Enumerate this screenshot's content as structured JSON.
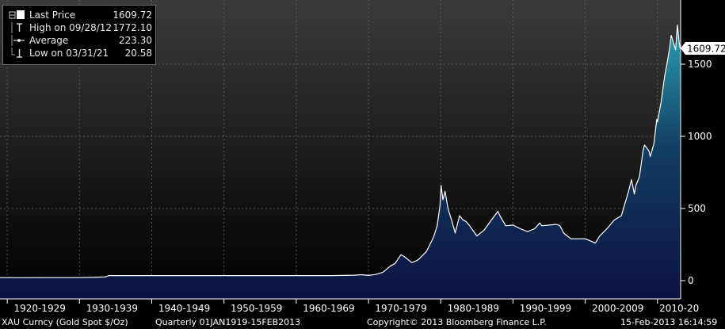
{
  "chart_data": {
    "type": "area",
    "title": "",
    "xlabel": "",
    "ylabel": "",
    "ylim": [
      0,
      1900
    ],
    "yticks": [
      0,
      500,
      1000,
      1500
    ],
    "y_tick_labels": [
      "0",
      "500",
      "1000",
      "1500"
    ],
    "xlim": [
      1919,
      2013.2
    ],
    "x_tick_labels": [
      {
        "x": 1924.5,
        "label": "1920-1929"
      },
      {
        "x": 1934.5,
        "label": "1930-1939"
      },
      {
        "x": 1944.5,
        "label": "1940-1949"
      },
      {
        "x": 1954.5,
        "label": "1950-1959"
      },
      {
        "x": 1964.5,
        "label": "1960-1969"
      },
      {
        "x": 1974.5,
        "label": "1970-1979"
      },
      {
        "x": 1984.5,
        "label": "1980-1989"
      },
      {
        "x": 1994.5,
        "label": "1990-1999"
      },
      {
        "x": 2004.5,
        "label": "2000-2009"
      },
      {
        "x": 2013.0,
        "label": "2010-20"
      }
    ],
    "grid": true,
    "legend_position": "top-left",
    "last_value_label": "1609.72",
    "colors": {
      "line": "#ffffff",
      "fill_top": "#2aa0b5",
      "fill_bottom": "#0c1240",
      "grid": "#555555"
    },
    "series": [
      {
        "name": "Last Price",
        "x": [
          1919.0,
          1920.0,
          1921.25,
          1925.0,
          1930.0,
          1933.5,
          1934.1,
          1940.0,
          1950.0,
          1960.0,
          1965.0,
          1968.0,
          1969.0,
          1970.0,
          1971.0,
          1972.0,
          1973.0,
          1973.7,
          1974.5,
          1975.0,
          1976.0,
          1976.7,
          1977.0,
          1978.0,
          1979.0,
          1979.5,
          1979.9,
          1980.05,
          1980.3,
          1980.6,
          1981.0,
          1981.5,
          1982.0,
          1982.6,
          1983.1,
          1983.5,
          1984.0,
          1985.0,
          1985.5,
          1986.0,
          1987.0,
          1987.9,
          1988.3,
          1989.0,
          1990.0,
          1991.0,
          1992.0,
          1993.0,
          1993.7,
          1994.0,
          1995.0,
          1996.0,
          1996.5,
          1997.0,
          1998.0,
          1999.0,
          1999.8,
          2000.0,
          2001.0,
          2001.4,
          2002.0,
          2003.0,
          2004.0,
          2005.0,
          2006.0,
          2006.4,
          2006.8,
          2007.0,
          2007.5,
          2008.0,
          2008.2,
          2008.8,
          2009.0,
          2009.5,
          2009.9,
          2010.0,
          2010.5,
          2011.0,
          2011.3,
          2011.7,
          2011.9,
          2012.2,
          2012.5,
          2012.75,
          2013.0,
          2013.12
        ],
        "y": [
          20.67,
          20.67,
          20.58,
          20.67,
          20.67,
          25.0,
          35.0,
          35.0,
          35.0,
          35.0,
          35.0,
          38.0,
          41.0,
          36.0,
          43.0,
          58.0,
          100.0,
          120.0,
          180.0,
          165.0,
          125.0,
          140.0,
          150.0,
          200.0,
          300.0,
          380.0,
          520.0,
          660.0,
          560.0,
          620.0,
          500.0,
          420.0,
          330.0,
          450.0,
          420.0,
          410.0,
          380.0,
          310.0,
          330.0,
          350.0,
          420.0,
          480.0,
          440.0,
          380.0,
          385.0,
          360.0,
          340.0,
          360.0,
          400.0,
          380.0,
          385.0,
          390.0,
          380.0,
          330.0,
          290.0,
          290.0,
          290.0,
          290.0,
          270.0,
          260.0,
          310.0,
          360.0,
          420.0,
          450.0,
          620.0,
          700.0,
          600.0,
          660.0,
          720.0,
          900.0,
          940.0,
          900.0,
          860.0,
          950.0,
          1120.0,
          1100.0,
          1240.0,
          1420.0,
          1500.0,
          1620.0,
          1700.0,
          1650.0,
          1600.0,
          1772.1,
          1650.0,
          1609.72
        ]
      }
    ]
  },
  "legend": {
    "items": [
      {
        "label": "Last Price",
        "value": "1609.72"
      },
      {
        "label": "High on 09/28/12",
        "value": "1772.10"
      },
      {
        "label": "Average",
        "value": "223.30"
      },
      {
        "label": "Low on 03/31/21",
        "value": "20.58"
      }
    ]
  },
  "footer": {
    "ticker": "XAU Curncy (Gold Spot  $/Oz)",
    "range": "Quarterly 01JAN1919-15FEB2013",
    "copyright": "Copyright© 2013 Bloomberg Finance L.P.",
    "timestamp": "15-Feb-2013 16:14:59"
  }
}
